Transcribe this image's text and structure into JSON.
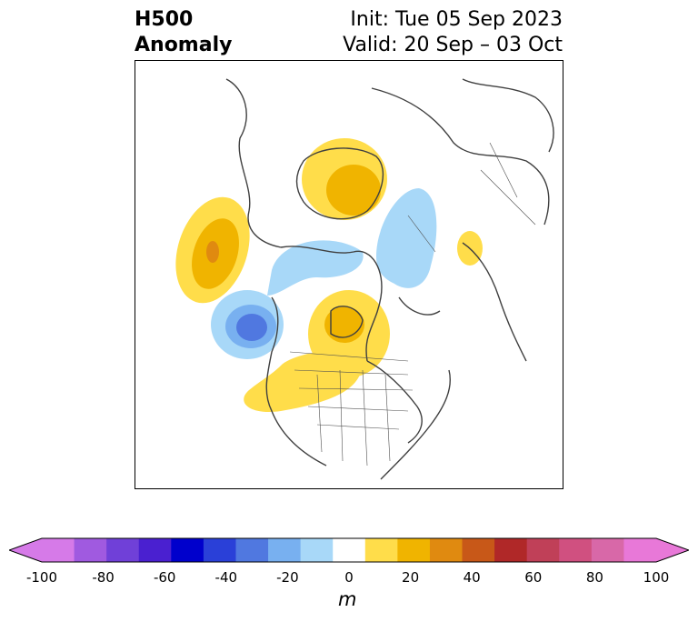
{
  "title": {
    "left_line1": "H500",
    "left_line2": "Anomaly",
    "init": "Init: Tue 05 Sep 2023",
    "valid": "Valid: 20 Sep – 03 Oct"
  },
  "colorbar": {
    "unit": "m",
    "ticks": [
      "-100",
      "-80",
      "-60",
      "-40",
      "-20",
      "0",
      "20",
      "40",
      "60",
      "80",
      "100"
    ],
    "levels": [
      -100,
      -90,
      -80,
      -70,
      -60,
      -50,
      -40,
      -30,
      -20,
      -10,
      10,
      20,
      30,
      40,
      50,
      60,
      70,
      80,
      90,
      100
    ],
    "colors": [
      "#d67ae8",
      "#a05ae0",
      "#7040d8",
      "#4a20d0",
      "#0000cc",
      "#2a40d8",
      "#5078e0",
      "#78b0f0",
      "#a8d8f8",
      "#ffffff",
      "#ffdd4a",
      "#f0b400",
      "#e08a10",
      "#c85818",
      "#b02828",
      "#c04058",
      "#d05080",
      "#d868a8",
      "#e878d8"
    ],
    "under_color": "#d67ae8",
    "over_color": "#e878d8"
  },
  "map": {
    "projection": "north-polar-stereographic",
    "field": "500 hPa geopotential height anomaly"
  }
}
